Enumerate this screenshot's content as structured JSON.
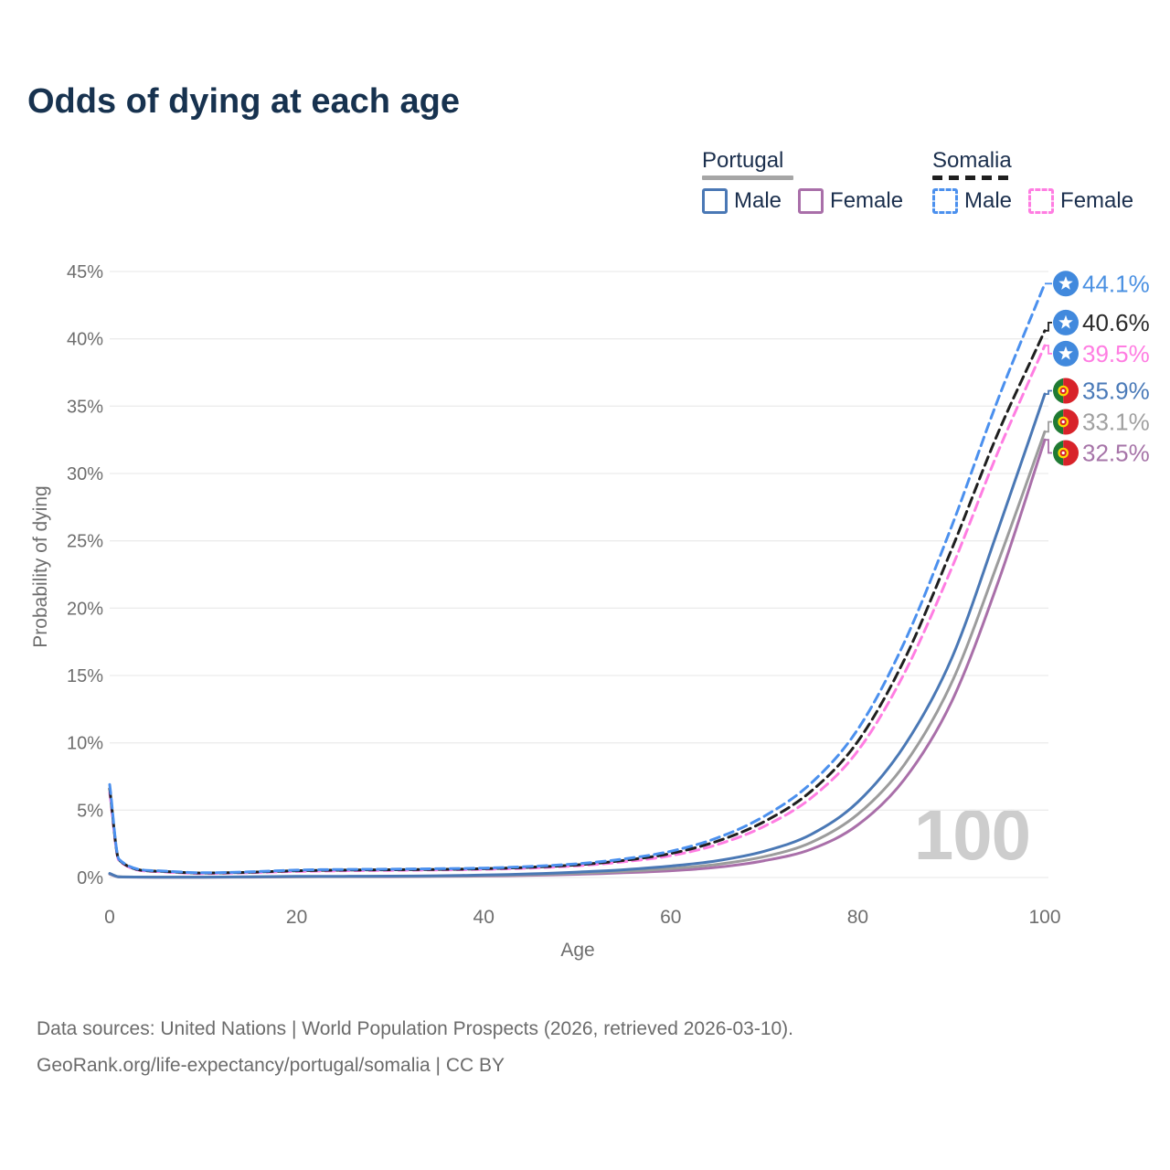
{
  "page": {
    "title": "Odds of dying at each age",
    "watermark": "100",
    "footer_line1": "Data sources: United Nations | World Population Prospects (2026, retrieved 2026-03-10).",
    "footer_line2": "GeoRank.org/life-expectancy/portugal/somalia | CC BY"
  },
  "legend": {
    "groups": [
      {
        "label": "Portugal",
        "line_style": "solid",
        "line_color": "#a6a6a6",
        "items": [
          {
            "label": "Male",
            "color": "#4a78b5"
          },
          {
            "label": "Female",
            "color": "#a96fa9"
          }
        ]
      },
      {
        "label": "Somalia",
        "line_style": "dashed",
        "line_color": "#1f1f1f",
        "items": [
          {
            "label": "Male",
            "color": "#4b90ee"
          },
          {
            "label": "Female",
            "color": "#ff7de2"
          }
        ]
      }
    ]
  },
  "chart_data": {
    "type": "line",
    "title": "Odds of dying at each age",
    "xlabel": "Age",
    "ylabel": "Probability of dying",
    "xlim": [
      0,
      100
    ],
    "ylim": [
      0,
      45
    ],
    "x_ticks": [
      0,
      20,
      40,
      60,
      80,
      100
    ],
    "y_ticks_percent": [
      0,
      5,
      10,
      15,
      20,
      25,
      30,
      35,
      40,
      45
    ],
    "grid": true,
    "legend_position": "top-right",
    "ages": [
      0,
      1,
      5,
      10,
      15,
      20,
      25,
      30,
      35,
      40,
      45,
      50,
      55,
      60,
      65,
      70,
      75,
      80,
      85,
      90,
      95,
      100
    ],
    "series": [
      {
        "name": "Portugal Female",
        "country": "Portugal",
        "sex": "Female",
        "flag": "portugal",
        "color": "#a96fa9",
        "label_color": "#a674a8",
        "dash": false,
        "end_label": "32.5%",
        "values": [
          0.25,
          0.04,
          0.02,
          0.02,
          0.03,
          0.05,
          0.06,
          0.06,
          0.08,
          0.11,
          0.16,
          0.24,
          0.35,
          0.5,
          0.76,
          1.25,
          2.1,
          3.9,
          7.3,
          13.0,
          21.9,
          32.5
        ]
      },
      {
        "name": "Portugal Total",
        "country": "Portugal",
        "sex": "Both sexes",
        "flag": "portugal",
        "color": "#9c9c9c",
        "label_color": "#a0a0a0",
        "dash": false,
        "end_label": "33.1%",
        "values": [
          0.28,
          0.05,
          0.03,
          0.03,
          0.04,
          0.06,
          0.07,
          0.08,
          0.1,
          0.14,
          0.21,
          0.31,
          0.45,
          0.66,
          0.98,
          1.55,
          2.6,
          4.7,
          8.4,
          14.4,
          23.4,
          33.1
        ]
      },
      {
        "name": "Portugal Male",
        "country": "Portugal",
        "sex": "Male",
        "flag": "portugal",
        "color": "#4a78b5",
        "label_color": "#4a7ab8",
        "dash": false,
        "end_label": "35.9%",
        "values": [
          0.3,
          0.05,
          0.03,
          0.03,
          0.05,
          0.08,
          0.09,
          0.1,
          0.13,
          0.18,
          0.27,
          0.4,
          0.58,
          0.85,
          1.25,
          1.95,
          3.2,
          5.6,
          9.8,
          16.2,
          25.8,
          35.9
        ]
      },
      {
        "name": "Somalia Female",
        "country": "Somalia",
        "sex": "Female",
        "flag": "somalia",
        "color": "#ff7de2",
        "label_color": "#ff7de2",
        "dash": true,
        "end_label": "39.5%",
        "values": [
          6.3,
          1.25,
          0.44,
          0.3,
          0.36,
          0.45,
          0.5,
          0.53,
          0.56,
          0.61,
          0.7,
          0.87,
          1.17,
          1.62,
          2.45,
          3.8,
          5.9,
          9.4,
          15.2,
          22.9,
          31.6,
          39.5
        ]
      },
      {
        "name": "Somalia Total",
        "country": "Somalia",
        "sex": "Both sexes",
        "flag": "somalia",
        "color": "#1f1f1f",
        "label_color": "#2b2b2b",
        "dash": true,
        "end_label": "40.6%",
        "values": [
          6.6,
          1.3,
          0.47,
          0.33,
          0.39,
          0.5,
          0.55,
          0.58,
          0.6,
          0.65,
          0.76,
          0.94,
          1.27,
          1.78,
          2.7,
          4.15,
          6.4,
          10.1,
          16.2,
          24.3,
          33.0,
          40.6
        ]
      },
      {
        "name": "Somalia Male",
        "country": "Somalia",
        "sex": "Male",
        "flag": "somalia",
        "color": "#4b90ee",
        "label_color": "#4a90e2",
        "dash": true,
        "end_label": "44.1%",
        "values": [
          6.9,
          1.35,
          0.5,
          0.35,
          0.42,
          0.55,
          0.6,
          0.62,
          0.65,
          0.7,
          0.82,
          1.02,
          1.38,
          1.95,
          2.95,
          4.55,
          7.0,
          11.0,
          17.5,
          26.0,
          35.5,
          44.1
        ]
      }
    ],
    "flag_colors": {
      "somalia_blue": "#4189dd",
      "somalia_star": "#ffffff",
      "portugal_green": "#1f7a33",
      "portugal_red": "#d8232a",
      "portugal_yellow": "#ffd900"
    },
    "style": {
      "grid_color": "#ececec",
      "tick_color": "#6e6e6e"
    }
  }
}
